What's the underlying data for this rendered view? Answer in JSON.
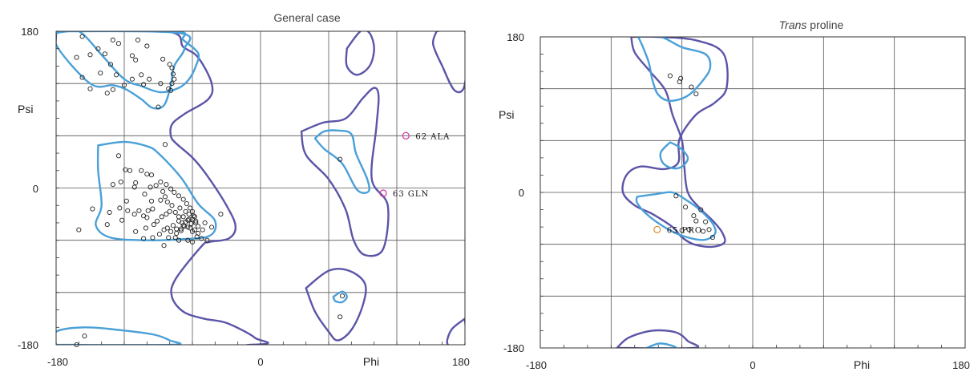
{
  "chart_data": [
    {
      "type": "scatter",
      "title": "General case",
      "xlabel": "Phi",
      "ylabel": "Psi",
      "xlim": [
        -180,
        180
      ],
      "ylim": [
        -180,
        180
      ],
      "xticks": [
        "-180",
        "0",
        "180"
      ],
      "yticks": [
        "180",
        "0",
        "-180"
      ],
      "grid": true,
      "contour_colors": {
        "favoured": "#4aa0d8",
        "allowed": "#5b55a8"
      },
      "point_color": "#222222",
      "outlier_color": "#d0309a",
      "points": [
        [
          -157,
          174
        ],
        [
          -130,
          170
        ],
        [
          -125,
          166
        ],
        [
          -108,
          170
        ],
        [
          -100,
          163
        ],
        [
          -110,
          147
        ],
        [
          -143,
          160
        ],
        [
          -150,
          153
        ],
        [
          -137,
          154
        ],
        [
          -162,
          150
        ],
        [
          -132,
          142
        ],
        [
          -113,
          152
        ],
        [
          -127,
          130
        ],
        [
          -141,
          132
        ],
        [
          -105,
          130
        ],
        [
          -98,
          125
        ],
        [
          -120,
          118
        ],
        [
          -113,
          125
        ],
        [
          -150,
          114
        ],
        [
          -157,
          127
        ],
        [
          -86,
          148
        ],
        [
          -80,
          142
        ],
        [
          -78,
          138
        ],
        [
          -77,
          131
        ],
        [
          -135,
          109
        ],
        [
          -130,
          113
        ],
        [
          -81,
          114
        ],
        [
          -103,
          119
        ],
        [
          -88,
          120
        ],
        [
          -79,
          112
        ],
        [
          -76,
          125
        ],
        [
          -78,
          120
        ],
        [
          -90,
          93
        ],
        [
          -84,
          50
        ],
        [
          -125,
          37
        ],
        [
          -115,
          20
        ],
        [
          -119,
          21
        ],
        [
          -105,
          20
        ],
        [
          -100,
          16
        ],
        [
          -96,
          15
        ],
        [
          -110,
          6
        ],
        [
          -130,
          4
        ],
        [
          -123,
          7
        ],
        [
          -111,
          1
        ],
        [
          -97,
          1
        ],
        [
          -102,
          -7
        ],
        [
          -118,
          -15
        ],
        [
          -124,
          -23
        ],
        [
          -133,
          -28
        ],
        [
          -122,
          -37
        ],
        [
          -111,
          -30
        ],
        [
          -103,
          -32
        ],
        [
          -91,
          -38
        ],
        [
          -87,
          -33
        ],
        [
          -83,
          -30
        ],
        [
          -80,
          -27
        ],
        [
          -78,
          -20
        ],
        [
          -82,
          -16
        ],
        [
          -84,
          -10
        ],
        [
          -86,
          -4
        ],
        [
          -92,
          3
        ],
        [
          -88,
          7
        ],
        [
          -83,
          4
        ],
        [
          -79,
          -1
        ],
        [
          -76,
          -5
        ],
        [
          -72,
          -9
        ],
        [
          -68,
          -13
        ],
        [
          -65,
          -18
        ],
        [
          -62,
          -23
        ],
        [
          -60,
          -27
        ],
        [
          -58,
          -33
        ],
        [
          -57,
          -40
        ],
        [
          -64,
          -37
        ],
        [
          -67,
          -44
        ],
        [
          -70,
          -49
        ],
        [
          -74,
          -47
        ],
        [
          -77,
          -43
        ],
        [
          -72,
          -38
        ],
        [
          -68,
          -33
        ],
        [
          -63,
          -30
        ],
        [
          -60,
          -36
        ],
        [
          -61,
          -41
        ],
        [
          -64,
          -45
        ],
        [
          -69,
          -40
        ],
        [
          -72,
          -33
        ],
        [
          -75,
          -28
        ],
        [
          -71,
          -23
        ],
        [
          -66,
          -27
        ],
        [
          -62,
          -46
        ],
        [
          -58,
          -48
        ],
        [
          -55,
          -44
        ],
        [
          -57,
          -38
        ],
        [
          -59,
          -32
        ],
        [
          -63,
          -36
        ],
        [
          -66,
          -39
        ],
        [
          -68,
          -43
        ],
        [
          -70,
          -47
        ],
        [
          -74,
          -52
        ],
        [
          -79,
          -50
        ],
        [
          -82,
          -46
        ],
        [
          -85,
          -48
        ],
        [
          -89,
          -53
        ],
        [
          -95,
          -57
        ],
        [
          -60,
          -50
        ],
        [
          -55,
          -52
        ],
        [
          -51,
          -48
        ],
        [
          -49,
          -40
        ],
        [
          -56,
          -56
        ],
        [
          -64,
          -60
        ],
        [
          -75,
          -57
        ],
        [
          -94,
          -42
        ],
        [
          -81,
          -57
        ],
        [
          -103,
          -58
        ],
        [
          -107,
          -26
        ],
        [
          -99,
          -26
        ],
        [
          -100,
          -34
        ],
        [
          -95,
          -24
        ],
        [
          -88,
          -14
        ],
        [
          -96,
          -15
        ],
        [
          -101,
          -46
        ],
        [
          -110,
          -50
        ],
        [
          -85,
          -66
        ],
        [
          -72,
          -60
        ],
        [
          -60,
          -62
        ],
        [
          -52,
          -58
        ],
        [
          -47,
          -60
        ],
        [
          -43,
          -45
        ],
        [
          -35,
          -30
        ],
        [
          -117,
          -26
        ],
        [
          -135,
          -42
        ],
        [
          -148,
          -24
        ],
        [
          -160,
          -48
        ],
        [
          -155,
          -170
        ],
        [
          -162,
          -180
        ],
        [
          70,
          33
        ],
        [
          70,
          -148
        ],
        [
          72,
          -124
        ]
      ],
      "outliers": [
        {
          "phi": 128,
          "psi": 60,
          "label": "62 ALA"
        },
        {
          "phi": 108,
          "psi": -6,
          "label": "63 GLN"
        }
      ]
    },
    {
      "type": "scatter",
      "title": "Trans proline",
      "title_italic": "Trans",
      "title_rest": " proline",
      "xlabel": "Phi",
      "ylabel": "Psi",
      "xlim": [
        -180,
        180
      ],
      "ylim": [
        -180,
        180
      ],
      "xticks": [
        "-180",
        "0",
        "180"
      ],
      "yticks": [
        "180",
        "0",
        "-180"
      ],
      "grid": true,
      "contour_colors": {
        "favoured": "#4aa0d8",
        "allowed": "#5b55a8"
      },
      "point_color": "#222222",
      "outlier_color": "#d89033",
      "points": [
        [
          -62,
          128
        ],
        [
          -52,
          122
        ],
        [
          -48,
          114
        ],
        [
          -70,
          135
        ],
        [
          -61,
          132
        ],
        [
          -65,
          -4
        ],
        [
          -57,
          -17
        ],
        [
          -50,
          -27
        ],
        [
          -44,
          -20
        ],
        [
          -40,
          -34
        ],
        [
          -42,
          -45
        ],
        [
          -37,
          -43
        ],
        [
          -34,
          -52
        ],
        [
          -48,
          -33
        ],
        [
          -54,
          -43
        ],
        [
          -60,
          -44
        ]
      ],
      "outliers": [
        {
          "phi": -81,
          "psi": -43,
          "label": "65 PRO"
        }
      ]
    }
  ]
}
